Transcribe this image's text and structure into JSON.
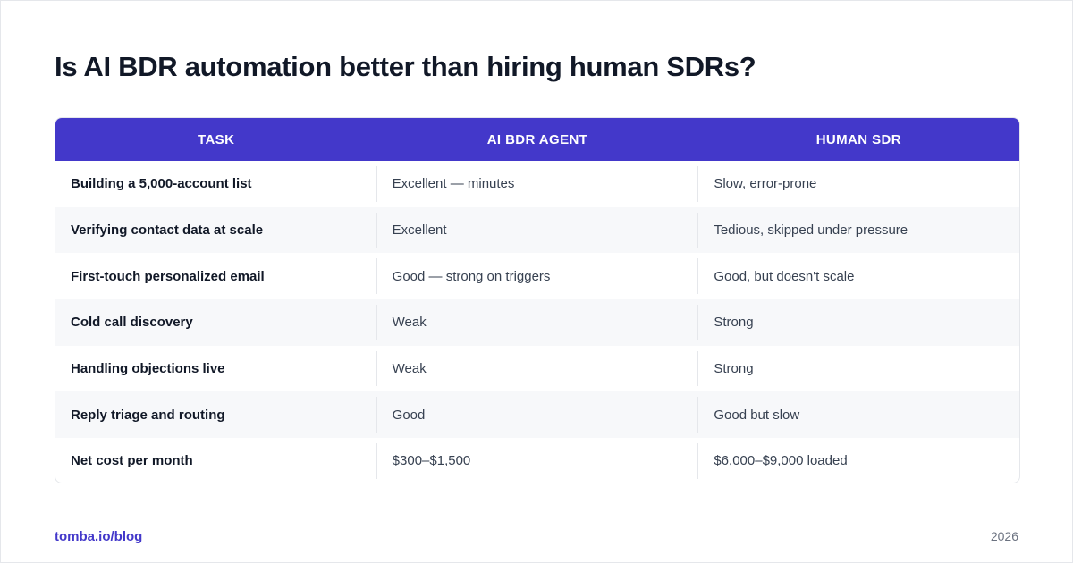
{
  "title": "Is AI BDR automation better than hiring human SDRs?",
  "colors": {
    "header_bg": "#4338ca",
    "brand": "#4338ca",
    "row_alt": "#f7f8fa"
  },
  "table": {
    "headers": [
      "TASK",
      "AI BDR AGENT",
      "HUMAN SDR"
    ],
    "rows": [
      [
        "Building a 5,000-account list",
        "Excellent — minutes",
        "Slow, error-prone"
      ],
      [
        "Verifying contact data at scale",
        "Excellent",
        "Tedious, skipped under pressure"
      ],
      [
        "First-touch personalized email",
        "Good — strong on triggers",
        "Good, but doesn't scale"
      ],
      [
        "Cold call discovery",
        "Weak",
        "Strong"
      ],
      [
        "Handling objections live",
        "Weak",
        "Strong"
      ],
      [
        "Reply triage and routing",
        "Good",
        "Good but slow"
      ],
      [
        "Net cost per month",
        "$300–$1,500",
        "$6,000–$9,000 loaded"
      ]
    ]
  },
  "footer": {
    "source": "tomba.io/blog",
    "year": "2026"
  }
}
